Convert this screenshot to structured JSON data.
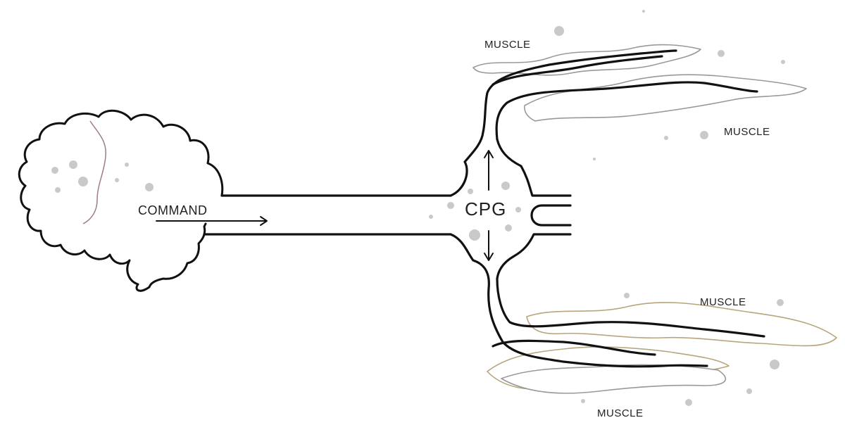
{
  "diagram": {
    "brain_label": "COMMAND",
    "cpg_label": "CPG",
    "muscle_labels": [
      "MUSCLE",
      "MUSCLE",
      "MUSCLE",
      "MUSCLE"
    ]
  }
}
